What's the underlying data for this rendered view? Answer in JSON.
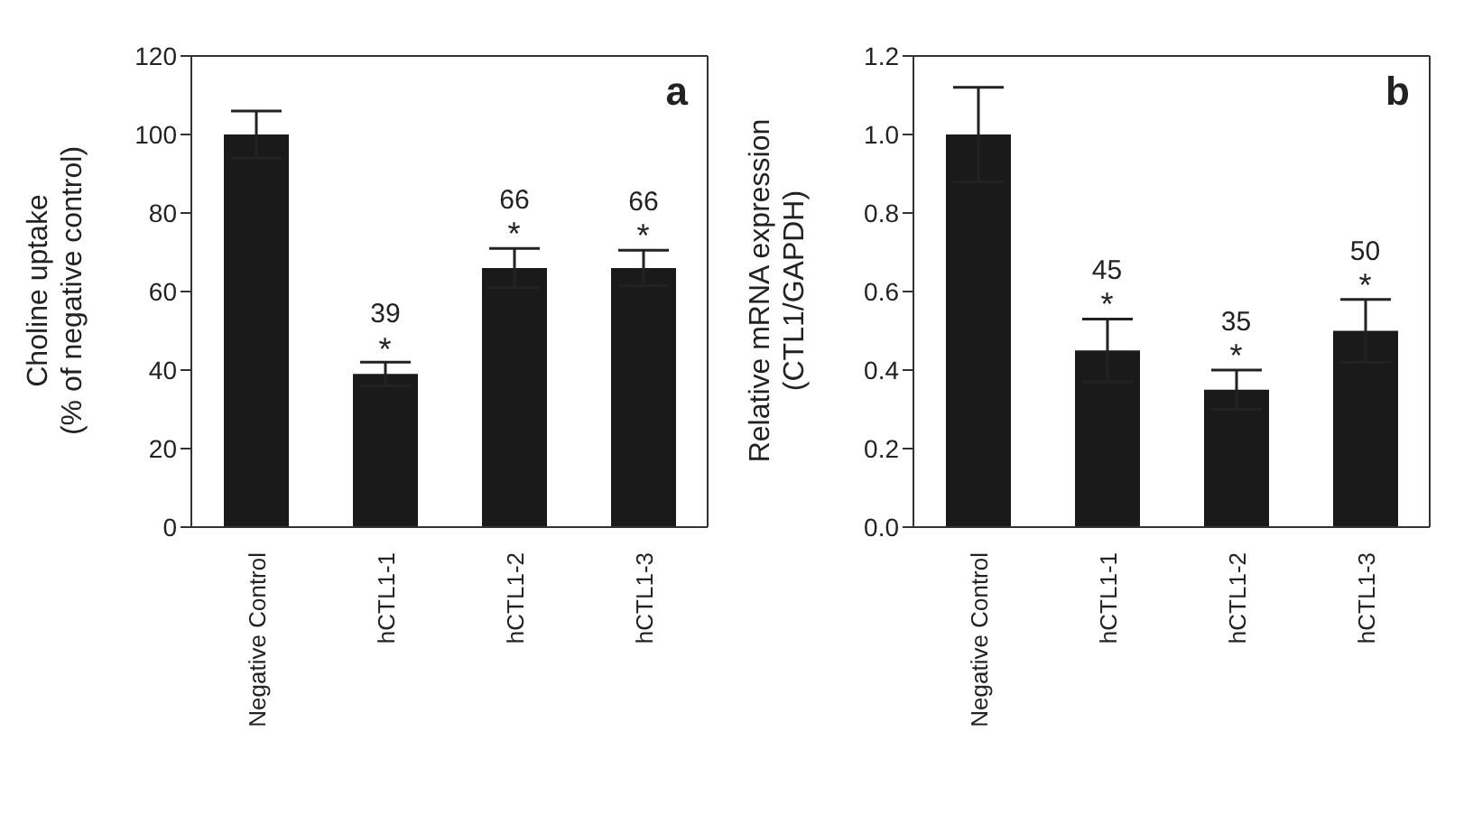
{
  "chart_data": [
    {
      "type": "bar",
      "ylabel": "Choline uptake\n(% of negative control)",
      "categories": [
        "Negative Control",
        "hCTL1-1",
        "hCTL1-2",
        "hCTL1-3"
      ],
      "color": "#1a1a1a",
      "values": [
        100,
        39,
        66,
        66
      ],
      "errors": [
        6,
        3,
        5,
        4.5
      ],
      "value_labels": [
        null,
        "39",
        "66",
        "66"
      ],
      "ylim": [
        0,
        120
      ],
      "yticks": [
        0,
        20,
        40,
        60,
        80,
        100,
        120
      ],
      "grid": false,
      "annotations": [
        "a",
        {
          "text": "*",
          "x": "hCTL1-1",
          "y": 41.5
        },
        {
          "text": "*",
          "x": "hCTL1-2",
          "y": 71
        },
        {
          "text": "*",
          "x": "hCTL1-3",
          "y": 70.5
        }
      ]
    },
    {
      "type": "bar",
      "ylabel": "Relative mRNA expression\n(CTL1/GAPDH)",
      "categories": [
        "Negative Control",
        "hCTL1-1",
        "hCTL1-2",
        "hCTL1-3"
      ],
      "color": "#1a1a1a",
      "values": [
        1.0,
        0.45,
        0.35,
        0.5
      ],
      "errors": [
        0.12,
        0.08,
        0.05,
        0.08
      ],
      "ylim": [
        0,
        1.2
      ],
      "yticks": [
        {
          "value": 0,
          "label": "0.0"
        },
        {
          "value": 0.2,
          "label": "0.2"
        },
        {
          "value": 0.4,
          "label": "0.4"
        },
        {
          "value": 0.6,
          "label": "0.6"
        },
        {
          "value": 0.8,
          "label": "0.8"
        },
        {
          "value": 1,
          "label": "1.0"
        },
        {
          "value": 1.2,
          "label": "1.2"
        }
      ],
      "grid": false,
      "annotations": [
        "b",
        {
          "text": "45\n*",
          "x": "hCTL1-1",
          "y": 0.53
        },
        {
          "text": "35\n*",
          "x": "hCTL1-2",
          "y": 0.4
        },
        {
          "text": "50\n*",
          "x": "hCTL1-3",
          "y": 0.58
        }
      ]
    }
  ]
}
